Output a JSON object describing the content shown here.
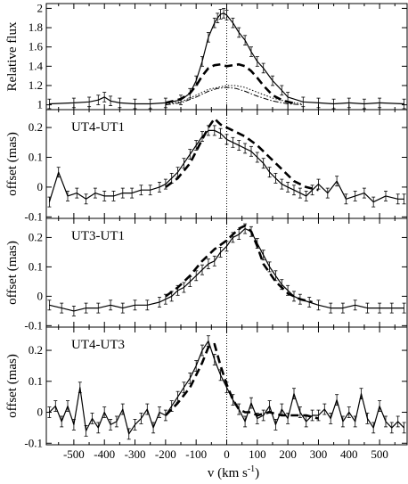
{
  "figure": {
    "xlabel_main": "v (km s",
    "xlabel_sup": "-1",
    "xlabel_close": ")"
  },
  "chart_data": [
    {
      "type": "line",
      "ylabel": "Relative flux",
      "xlim": [
        -590,
        590
      ],
      "ylim": [
        0.95,
        2.05
      ],
      "yticks": [
        1,
        1.2,
        1.4,
        1.6,
        1.8,
        2
      ],
      "ytick_labels": [
        "1",
        "1.2",
        "1.4",
        "1.6",
        "1.8",
        "2"
      ],
      "series": [
        {
          "style": "solid-errorbars",
          "x": [
            -580,
            -500,
            -450,
            -420,
            -400,
            -380,
            -350,
            -300,
            -250,
            -200,
            -150,
            -120,
            -100,
            -80,
            -60,
            -40,
            -30,
            -20,
            -10,
            0,
            20,
            40,
            60,
            80,
            100,
            120,
            150,
            180,
            200,
            250,
            300,
            350,
            400,
            450,
            500,
            580
          ],
          "y": [
            1.01,
            1.02,
            1.03,
            1.05,
            1.08,
            1.04,
            1.02,
            1.01,
            1.01,
            1.02,
            1.05,
            1.12,
            1.25,
            1.45,
            1.7,
            1.85,
            1.9,
            1.94,
            1.95,
            1.93,
            1.85,
            1.75,
            1.67,
            1.55,
            1.45,
            1.38,
            1.25,
            1.15,
            1.08,
            1.03,
            1.02,
            1.01,
            1.02,
            1.01,
            1.02,
            1.01
          ]
        },
        {
          "style": "dashed",
          "x": [
            -200,
            -150,
            -120,
            -100,
            -80,
            -60,
            -40,
            -20,
            0,
            20,
            40,
            60,
            80,
            100,
            120,
            150,
            180,
            200,
            230
          ],
          "y": [
            1.02,
            1.06,
            1.12,
            1.2,
            1.3,
            1.38,
            1.41,
            1.42,
            1.4,
            1.41,
            1.42,
            1.4,
            1.35,
            1.28,
            1.2,
            1.1,
            1.05,
            1.03,
            1.01
          ]
        },
        {
          "style": "dotted",
          "x": [
            -200,
            -150,
            -100,
            -60,
            -30,
            0,
            30,
            60,
            100,
            150,
            200,
            250
          ],
          "y": [
            1.01,
            1.03,
            1.1,
            1.16,
            1.18,
            1.2,
            1.2,
            1.18,
            1.13,
            1.07,
            1.03,
            1.01
          ]
        },
        {
          "style": "dashdot",
          "x": [
            -200,
            -150,
            -100,
            -60,
            -30,
            0,
            30,
            60,
            100,
            150,
            200,
            250
          ],
          "y": [
            1.0,
            1.02,
            1.08,
            1.14,
            1.17,
            1.18,
            1.17,
            1.14,
            1.09,
            1.04,
            1.01,
            1.0
          ]
        }
      ]
    },
    {
      "type": "line",
      "label": "UT4-UT1",
      "ylabel": "offset (mas)",
      "xlim": [
        -590,
        590
      ],
      "ylim": [
        -0.105,
        0.26
      ],
      "yticks": [
        -0.1,
        0,
        0.1,
        0.2
      ],
      "ytick_labels": [
        "-0.1",
        "0",
        "0.1",
        "0.2"
      ],
      "series": [
        {
          "style": "solid-errorbars",
          "x": [
            -580,
            -550,
            -520,
            -490,
            -460,
            -430,
            -400,
            -370,
            -340,
            -310,
            -280,
            -250,
            -220,
            -200,
            -180,
            -160,
            -140,
            -120,
            -100,
            -80,
            -60,
            -40,
            -20,
            0,
            20,
            40,
            60,
            80,
            100,
            120,
            140,
            160,
            180,
            200,
            220,
            240,
            260,
            280,
            300,
            330,
            360,
            390,
            420,
            450,
            480,
            520,
            560,
            580
          ],
          "y": [
            -0.05,
            0.05,
            -0.03,
            -0.02,
            -0.04,
            -0.02,
            -0.03,
            -0.03,
            -0.02,
            -0.02,
            -0.01,
            -0.01,
            0.0,
            0.01,
            0.03,
            0.05,
            0.08,
            0.11,
            0.14,
            0.17,
            0.19,
            0.19,
            0.18,
            0.16,
            0.15,
            0.14,
            0.13,
            0.12,
            0.1,
            0.08,
            0.05,
            0.03,
            0.01,
            0.0,
            -0.01,
            -0.02,
            -0.03,
            -0.01,
            0.01,
            -0.02,
            0.02,
            -0.04,
            -0.03,
            -0.02,
            -0.05,
            -0.03,
            -0.04,
            -0.04
          ]
        },
        {
          "style": "dashed",
          "x": [
            -200,
            -160,
            -120,
            -100,
            -80,
            -60,
            -40,
            -30,
            -20,
            0,
            20,
            60,
            100,
            140,
            180,
            220,
            260,
            300
          ],
          "y": [
            0.0,
            0.03,
            0.08,
            0.12,
            0.16,
            0.2,
            0.23,
            0.22,
            0.21,
            0.2,
            0.19,
            0.17,
            0.14,
            0.1,
            0.06,
            0.02,
            0.0,
            -0.01
          ]
        }
      ]
    },
    {
      "type": "line",
      "label": "UT3-UT1",
      "ylabel": "offset (mas)",
      "xlim": [
        -590,
        590
      ],
      "ylim": [
        -0.105,
        0.265
      ],
      "yticks": [
        -0.1,
        0,
        0.1,
        0.2
      ],
      "ytick_labels": [
        "-0.1",
        "0",
        "0.1",
        "0.2"
      ],
      "series": [
        {
          "style": "solid-errorbars",
          "x": [
            -580,
            -540,
            -500,
            -460,
            -420,
            -380,
            -340,
            -300,
            -260,
            -220,
            -200,
            -180,
            -160,
            -140,
            -120,
            -100,
            -80,
            -60,
            -40,
            -20,
            0,
            20,
            40,
            60,
            80,
            100,
            120,
            140,
            160,
            180,
            200,
            220,
            240,
            270,
            300,
            340,
            380,
            420,
            460,
            500,
            540,
            580
          ],
          "y": [
            -0.03,
            -0.04,
            -0.05,
            -0.04,
            -0.04,
            -0.03,
            -0.04,
            -0.03,
            -0.03,
            -0.02,
            -0.01,
            0.0,
            0.02,
            0.03,
            0.05,
            0.07,
            0.09,
            0.11,
            0.12,
            0.15,
            0.17,
            0.2,
            0.21,
            0.23,
            0.22,
            0.18,
            0.14,
            0.1,
            0.07,
            0.04,
            0.02,
            0.0,
            -0.01,
            -0.02,
            -0.03,
            -0.04,
            -0.04,
            -0.03,
            -0.04,
            -0.04,
            -0.04,
            -0.04
          ]
        },
        {
          "style": "dashed",
          "x": [
            -200,
            -160,
            -120,
            -80,
            -40,
            0,
            20,
            40,
            60,
            80,
            100,
            120,
            160,
            200,
            240,
            280
          ],
          "y": [
            0.0,
            0.03,
            0.07,
            0.12,
            0.16,
            0.19,
            0.21,
            0.23,
            0.24,
            0.22,
            0.17,
            0.11,
            0.05,
            0.01,
            -0.01,
            -0.02
          ]
        }
      ]
    },
    {
      "type": "line",
      "label": "UT4-UT3",
      "ylabel": "offset (mas)",
      "xlim": [
        -590,
        590
      ],
      "ylim": [
        -0.105,
        0.275
      ],
      "yticks": [
        -0.1,
        0,
        0.1,
        0.2
      ],
      "ytick_labels": [
        "-0.1",
        "0",
        "0.1",
        "0.2"
      ],
      "xticks": [
        -500,
        -400,
        -300,
        -200,
        -100,
        0,
        100,
        200,
        300,
        400,
        500
      ],
      "xtick_labels": [
        "-500",
        "-400",
        "-300",
        "-200",
        "-100",
        "0",
        "100",
        "200",
        "300",
        "400",
        "500"
      ],
      "series": [
        {
          "style": "solid-errorbars",
          "x": [
            -580,
            -560,
            -540,
            -520,
            -500,
            -480,
            -460,
            -440,
            -420,
            -400,
            -380,
            -360,
            -340,
            -320,
            -300,
            -280,
            -260,
            -240,
            -220,
            -200,
            -180,
            -160,
            -140,
            -120,
            -100,
            -80,
            -60,
            -40,
            -20,
            0,
            20,
            40,
            60,
            80,
            100,
            120,
            140,
            160,
            180,
            200,
            220,
            240,
            260,
            280,
            300,
            320,
            340,
            360,
            380,
            400,
            420,
            440,
            460,
            480,
            500,
            520,
            540,
            560,
            580
          ],
          "y": [
            0.0,
            0.02,
            -0.03,
            0.02,
            -0.04,
            0.08,
            -0.06,
            -0.02,
            -0.05,
            0.0,
            -0.04,
            -0.03,
            0.01,
            -0.07,
            -0.04,
            -0.02,
            0.01,
            -0.05,
            0.0,
            -0.01,
            0.02,
            0.05,
            0.08,
            0.11,
            0.15,
            0.2,
            0.23,
            0.17,
            0.12,
            0.08,
            0.04,
            0.01,
            -0.03,
            0.03,
            -0.02,
            -0.01,
            0.02,
            -0.04,
            0.01,
            -0.02,
            0.06,
            0.0,
            -0.03,
            -0.01,
            -0.01,
            0.01,
            -0.02,
            0.04,
            -0.03,
            0.0,
            -0.03,
            0.06,
            -0.02,
            -0.05,
            0.02,
            -0.03,
            -0.05,
            -0.03,
            -0.05
          ]
        },
        {
          "style": "dashed",
          "x": [
            -200,
            -160,
            -120,
            -100,
            -80,
            -60,
            -40,
            -20,
            0,
            20,
            40,
            60,
            80,
            100,
            140,
            180,
            220,
            260,
            300
          ],
          "y": [
            -0.01,
            0.03,
            0.08,
            0.12,
            0.16,
            0.21,
            0.22,
            0.15,
            0.09,
            0.04,
            0.01,
            0.0,
            0.0,
            -0.01,
            0.0,
            -0.01,
            -0.01,
            -0.01,
            -0.02
          ]
        }
      ]
    }
  ]
}
